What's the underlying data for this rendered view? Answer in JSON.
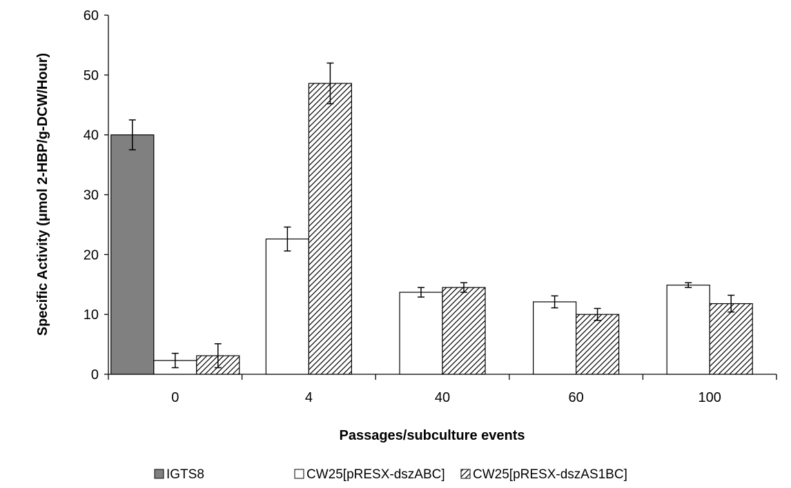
{
  "chart_data": {
    "type": "bar",
    "categories": [
      "0",
      "4",
      "40",
      "60",
      "100"
    ],
    "series": [
      {
        "name": "IGTS8",
        "values": [
          40,
          null,
          null,
          null,
          null
        ],
        "errors": [
          2.5,
          null,
          null,
          null,
          null
        ],
        "color": "#808080",
        "pattern": "solid"
      },
      {
        "name": "CW25[pRESX-dszABC]",
        "values": [
          2.3,
          22.6,
          13.7,
          12.1,
          14.9
        ],
        "errors": [
          1.2,
          2.0,
          0.8,
          1.0,
          0.4
        ],
        "color": "#ffffff",
        "pattern": "none"
      },
      {
        "name": "CW25[pRESX-dszAS1BC]",
        "values": [
          3.1,
          48.6,
          14.5,
          10.0,
          11.8
        ],
        "errors": [
          2.0,
          3.4,
          0.8,
          1.0,
          1.4
        ],
        "color": "#ffffff",
        "pattern": "hatch"
      }
    ],
    "xlabel": "Passages/subculture events",
    "ylabel": "Specific Activity (μmol 2-HBP/g-DCW/Hour)",
    "ylim": [
      0,
      60
    ],
    "yticks": [
      "0",
      "10",
      "20",
      "30",
      "40",
      "50",
      "60"
    ],
    "grid": false,
    "legend_position": "bottom"
  }
}
